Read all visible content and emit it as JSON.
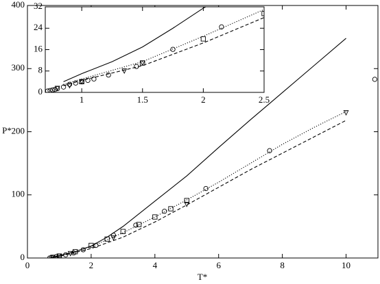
{
  "chart_data": [
    {
      "type": "line",
      "x_label": "T*",
      "y_label": "P*",
      "xlim": [
        0,
        11
      ],
      "ylim": [
        0,
        400
      ],
      "xticks": [
        0,
        2,
        4,
        6,
        8,
        10
      ],
      "yticks": [
        0,
        100,
        200,
        300,
        400
      ],
      "series": [
        {
          "color": "#000000",
          "linestyle": "solid",
          "x": [
            0.7,
            1,
            1.5,
            2,
            2.5,
            3,
            4,
            5,
            6,
            7,
            8,
            9,
            10
          ],
          "values": [
            0,
            4,
            10,
            19,
            33,
            50,
            90,
            130,
            175,
            219,
            262,
            305,
            348
          ]
        },
        {
          "color": "#000000",
          "linestyle": "dotted",
          "x": [
            0.7,
            1,
            2,
            3,
            4,
            5,
            6,
            7,
            8,
            9,
            10
          ],
          "values": [
            0,
            3,
            18,
            40,
            65,
            92,
            120,
            150,
            180,
            207,
            232
          ]
        },
        {
          "color": "#000000",
          "linestyle": "dashed",
          "x": [
            0.7,
            1,
            2,
            3,
            4,
            5,
            6,
            7,
            8,
            9,
            10
          ],
          "values": [
            0,
            2.5,
            15,
            33,
            57,
            84,
            112,
            140,
            166,
            192,
            218
          ]
        },
        {
          "color": "#000000",
          "marker": "circle",
          "x": [
            0.7,
            0.75,
            0.8,
            0.9,
            1,
            1.2,
            1.45,
            1.75,
            2.15,
            2.7,
            3.4,
            4.3,
            5.6,
            7.6,
            10.9
          ],
          "values": [
            0,
            0.5,
            1,
            2,
            3,
            5,
            8,
            13,
            20,
            36,
            52,
            74,
            110,
            170,
            283
          ]
        },
        {
          "color": "#000000",
          "marker": "square",
          "x": [
            1,
            1.5,
            2,
            2.5,
            3,
            3.5,
            4,
            4.5,
            5
          ],
          "values": [
            3,
            10,
            20,
            30,
            42,
            53,
            65,
            78,
            91
          ]
        },
        {
          "color": "#000000",
          "marker": "triangle",
          "x": [
            0.8,
            1,
            1.35,
            2.7,
            5,
            10
          ],
          "values": [
            1,
            3,
            7,
            32,
            85,
            230
          ]
        }
      ]
    },
    {
      "type": "line",
      "xlim": [
        0.7,
        2.5
      ],
      "ylim": [
        0,
        32
      ],
      "xticks": [
        1,
        1.5,
        2,
        2.5
      ],
      "yticks": [
        0,
        8,
        16,
        24,
        32
      ],
      "series": [
        {
          "color": "#000000",
          "linestyle": "solid",
          "x": [
            0.85,
            1,
            1.25,
            1.5,
            1.75,
            2,
            2.02
          ],
          "values": [
            4,
            7,
            11.5,
            17,
            24,
            31.5,
            32
          ]
        },
        {
          "color": "#000000",
          "linestyle": "dotted",
          "x": [
            0.85,
            1,
            1.5,
            2,
            2.5
          ],
          "values": [
            3,
            5,
            11.5,
            21,
            31
          ]
        },
        {
          "color": "#000000",
          "linestyle": "dashed",
          "x": [
            0.85,
            1,
            1.5,
            2,
            2.5
          ],
          "values": [
            2.5,
            4.5,
            10,
            18.5,
            28
          ]
        },
        {
          "color": "#000000",
          "marker": "circle",
          "x": [
            0.72,
            0.74,
            0.76,
            0.78,
            0.8,
            0.85,
            0.9,
            0.95,
            1,
            1.05,
            1.1,
            1.22,
            1.45,
            1.75,
            2.15
          ],
          "values": [
            0.5,
            0.7,
            0.9,
            1.1,
            1.4,
            2,
            3,
            3.5,
            4,
            4.5,
            5,
            6.5,
            9.7,
            16.1,
            24.5
          ]
        },
        {
          "color": "#000000",
          "marker": "square",
          "x": [
            1,
            1.5,
            2,
            2.5
          ],
          "values": [
            4,
            11,
            20,
            29.5
          ]
        },
        {
          "color": "#000000",
          "marker": "triangle",
          "x": [
            0.8,
            0.9,
            1,
            1.35,
            1.5
          ],
          "values": [
            1.5,
            2.5,
            4,
            8,
            11
          ]
        }
      ]
    }
  ]
}
